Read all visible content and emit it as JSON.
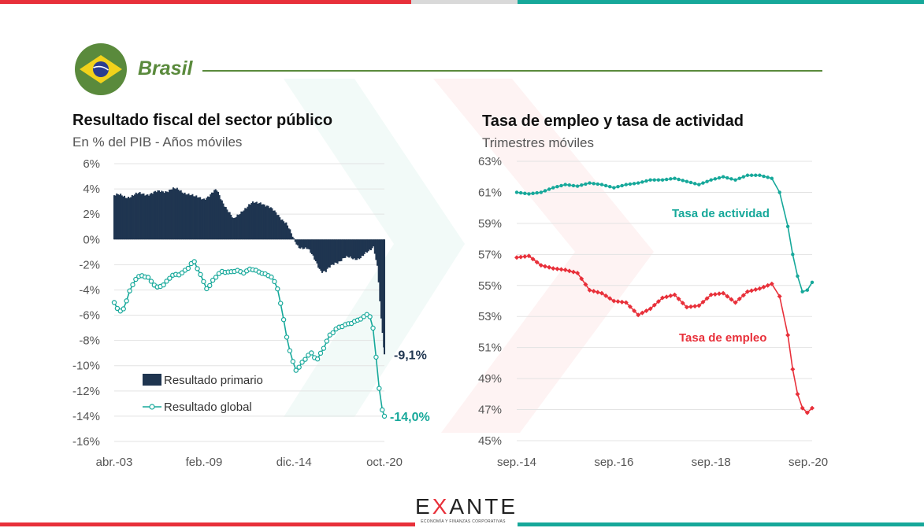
{
  "header": {
    "country": "Brasil"
  },
  "brand": {
    "name_part1": "E",
    "name_x": "X",
    "name_part2": "ANTE",
    "tagline": "ECONOMÍA Y FINANZAS CORPORATIVAS"
  },
  "colors": {
    "primary": "#1f3550",
    "global": "#16a89a",
    "actividad": "#16a89a",
    "empleo": "#e8303a",
    "accent_green": "#5a8a3c"
  },
  "chart_data": [
    {
      "type": "bar",
      "title": "Resultado fiscal del sector público",
      "subtitle": "En % del PIB - Años móviles",
      "ylim": [
        -16,
        6
      ],
      "yticks": [
        "6%",
        "4%",
        "2%",
        "0%",
        "-2%",
        "-4%",
        "-6%",
        "-8%",
        "-10%",
        "-12%",
        "-14%",
        "-16%"
      ],
      "xticks": [
        "abr.-03",
        "feb.-09",
        "dic.-14",
        "oct.-20"
      ],
      "grid": true,
      "legend": "bottom-left",
      "series": [
        {
          "name": "Resultado primario",
          "type": "bar",
          "points": [
            [
              2003.25,
              3.5
            ],
            [
              2004,
              3.4
            ],
            [
              2005,
              3.6
            ],
            [
              2006,
              3.7
            ],
            [
              2007,
              4.0
            ],
            [
              2008,
              3.7
            ],
            [
              2008.5,
              3.3
            ],
            [
              2009.1,
              3.3
            ],
            [
              2009.5,
              3.5
            ],
            [
              2009.9,
              3.9
            ],
            [
              2010.5,
              2.6
            ],
            [
              2011,
              1.5
            ],
            [
              2011.6,
              2.4
            ],
            [
              2012.2,
              2.8
            ],
            [
              2012.8,
              3.0
            ],
            [
              2013.4,
              2.4
            ],
            [
              2013.9,
              2.0
            ],
            [
              2014.4,
              1.3
            ],
            [
              2014.9,
              0.0
            ],
            [
              2015.2,
              -0.5
            ],
            [
              2015.8,
              -0.8
            ],
            [
              2016.3,
              -1.6
            ],
            [
              2016.7,
              -2.5
            ],
            [
              2017,
              -2.6
            ],
            [
              2017.6,
              -1.8
            ],
            [
              2018.2,
              -1.5
            ],
            [
              2018.8,
              -1.5
            ],
            [
              2019.3,
              -1.4
            ],
            [
              2019.8,
              -1.0
            ],
            [
              2020.1,
              -0.5
            ],
            [
              2020.35,
              -2.2
            ],
            [
              2020.55,
              -5.8
            ],
            [
              2020.79,
              -9.1
            ]
          ],
          "end_label": "-9,1%"
        },
        {
          "name": "Resultado global",
          "type": "line",
          "points": [
            [
              2003.25,
              -5.0
            ],
            [
              2003.6,
              -5.8
            ],
            [
              2003.9,
              -5.5
            ],
            [
              2004.2,
              -4.3
            ],
            [
              2004.6,
              -3.2
            ],
            [
              2005,
              -2.8
            ],
            [
              2005.5,
              -3.0
            ],
            [
              2006,
              -3.8
            ],
            [
              2006.5,
              -3.6
            ],
            [
              2007,
              -2.9
            ],
            [
              2007.5,
              -2.8
            ],
            [
              2008,
              -2.3
            ],
            [
              2008.4,
              -1.6
            ],
            [
              2008.8,
              -2.6
            ],
            [
              2009.1,
              -3.5
            ],
            [
              2009.3,
              -4.0
            ],
            [
              2009.7,
              -3.2
            ],
            [
              2010.2,
              -2.6
            ],
            [
              2010.7,
              -2.6
            ],
            [
              2011.2,
              -2.4
            ],
            [
              2011.7,
              -2.6
            ],
            [
              2012.1,
              -2.3
            ],
            [
              2012.6,
              -2.6
            ],
            [
              2013,
              -2.8
            ],
            [
              2013.5,
              -3.0
            ],
            [
              2013.9,
              -4.0
            ],
            [
              2014.2,
              -6.0
            ],
            [
              2014.5,
              -8.0
            ],
            [
              2014.8,
              -9.5
            ],
            [
              2015.1,
              -10.5
            ],
            [
              2015.3,
              -10.0
            ],
            [
              2015.6,
              -9.6
            ],
            [
              2016,
              -9.0
            ],
            [
              2016.4,
              -9.6
            ],
            [
              2016.8,
              -8.7
            ],
            [
              2017.2,
              -7.6
            ],
            [
              2017.7,
              -7.0
            ],
            [
              2018.2,
              -6.8
            ],
            [
              2018.6,
              -6.7
            ],
            [
              2019,
              -6.5
            ],
            [
              2019.4,
              -6.2
            ],
            [
              2019.7,
              -5.9
            ],
            [
              2019.9,
              -6.1
            ],
            [
              2020.1,
              -7.3
            ],
            [
              2020.3,
              -10.0
            ],
            [
              2020.5,
              -12.4
            ],
            [
              2020.65,
              -13.5
            ],
            [
              2020.79,
              -14.0
            ]
          ],
          "end_label": "-14,0%"
        }
      ]
    },
    {
      "type": "line",
      "title": "Tasa de empleo y tasa de actividad",
      "subtitle": "Trimestres móviles",
      "ylim": [
        45,
        63
      ],
      "yticks": [
        "63%",
        "61%",
        "59%",
        "57%",
        "55%",
        "53%",
        "51%",
        "49%",
        "47%",
        "45%"
      ],
      "xticks": [
        "sep.-14",
        "sep.-16",
        "sep.-18",
        "sep.-20"
      ],
      "grid": true,
      "series": [
        {
          "name": "Tasa de actividad",
          "points": [
            [
              2014.67,
              61.0
            ],
            [
              2014.92,
              60.9
            ],
            [
              2015.17,
              61.0
            ],
            [
              2015.42,
              61.3
            ],
            [
              2015.67,
              61.5
            ],
            [
              2015.92,
              61.4
            ],
            [
              2016.17,
              61.6
            ],
            [
              2016.42,
              61.5
            ],
            [
              2016.67,
              61.3
            ],
            [
              2016.92,
              61.5
            ],
            [
              2017.17,
              61.6
            ],
            [
              2017.42,
              61.8
            ],
            [
              2017.67,
              61.8
            ],
            [
              2017.92,
              61.9
            ],
            [
              2018.17,
              61.7
            ],
            [
              2018.42,
              61.5
            ],
            [
              2018.67,
              61.8
            ],
            [
              2018.92,
              62.0
            ],
            [
              2019.17,
              61.8
            ],
            [
              2019.42,
              62.1
            ],
            [
              2019.67,
              62.1
            ],
            [
              2019.92,
              61.9
            ],
            [
              2020.08,
              61.0
            ],
            [
              2020.25,
              58.8
            ],
            [
              2020.35,
              57.0
            ],
            [
              2020.45,
              55.6
            ],
            [
              2020.55,
              54.6
            ],
            [
              2020.65,
              54.7
            ],
            [
              2020.75,
              55.2
            ]
          ]
        },
        {
          "name": "Tasa de empleo",
          "points": [
            [
              2014.67,
              56.8
            ],
            [
              2014.92,
              56.9
            ],
            [
              2015.17,
              56.3
            ],
            [
              2015.42,
              56.1
            ],
            [
              2015.67,
              56.0
            ],
            [
              2015.92,
              55.8
            ],
            [
              2016.17,
              54.7
            ],
            [
              2016.42,
              54.5
            ],
            [
              2016.67,
              54.0
            ],
            [
              2016.92,
              53.9
            ],
            [
              2017.17,
              53.1
            ],
            [
              2017.42,
              53.5
            ],
            [
              2017.67,
              54.2
            ],
            [
              2017.92,
              54.4
            ],
            [
              2018.17,
              53.6
            ],
            [
              2018.42,
              53.7
            ],
            [
              2018.67,
              54.4
            ],
            [
              2018.92,
              54.5
            ],
            [
              2019.17,
              53.9
            ],
            [
              2019.42,
              54.6
            ],
            [
              2019.67,
              54.8
            ],
            [
              2019.92,
              55.1
            ],
            [
              2020.08,
              54.3
            ],
            [
              2020.25,
              51.8
            ],
            [
              2020.35,
              49.6
            ],
            [
              2020.45,
              48.0
            ],
            [
              2020.55,
              47.1
            ],
            [
              2020.65,
              46.8
            ],
            [
              2020.75,
              47.1
            ]
          ]
        }
      ]
    }
  ]
}
